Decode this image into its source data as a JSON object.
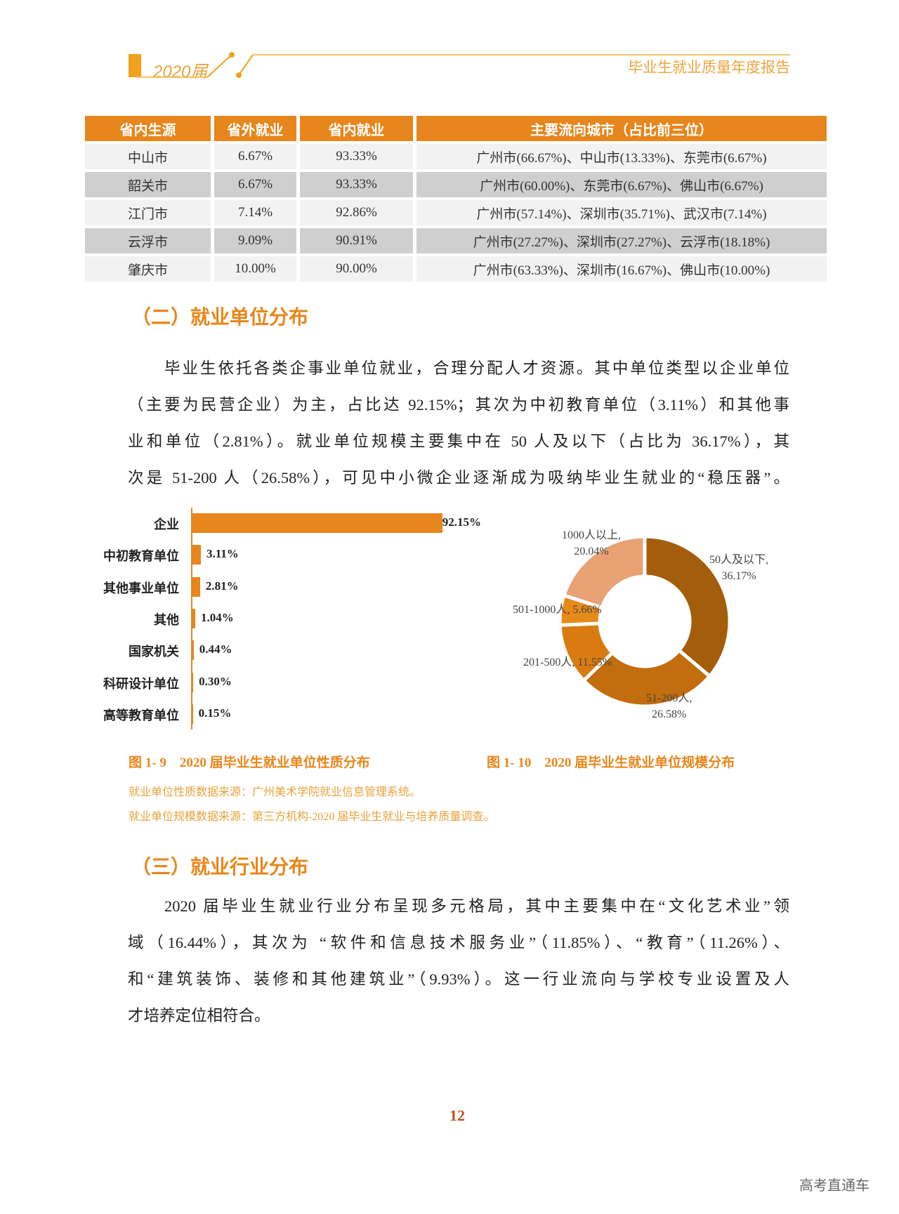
{
  "header": {
    "year": "2020届",
    "title": "毕业生就业质量年度报告",
    "accent": "#f0a21c"
  },
  "table": {
    "headers": [
      "省内生源",
      "省外就业",
      "省内就业",
      "主要流向城市（占比前三位）"
    ],
    "rows": [
      [
        "中山市",
        "6.67%",
        "93.33%",
        "广州市(66.67%)、中山市(13.33%)、东莞市(6.67%)"
      ],
      [
        "韶关市",
        "6.67%",
        "93.33%",
        "广州市(60.00%)、东莞市(6.67%)、佛山市(6.67%)"
      ],
      [
        "江门市",
        "7.14%",
        "92.86%",
        "广州市(57.14%)、深圳市(35.71%)、武汉市(7.14%)"
      ],
      [
        "云浮市",
        "9.09%",
        "90.91%",
        "广州市(27.27%)、深圳市(27.27%)、云浮市(18.18%)"
      ],
      [
        "肇庆市",
        "10.00%",
        "90.00%",
        "广州市(63.33%)、深圳市(16.67%)、佛山市(10.00%)"
      ]
    ]
  },
  "section2": {
    "heading": "（二）就业单位分布",
    "lines": [
      "毕业生依托各类企事业单位就业，合理分配人才资源。其中单位类型以企业单位",
      "（主要为民营企业）为主，占比达 92.15%；其次为中初教育单位（3.11%）和其他事",
      "业和单位（2.81%）。就业单位规模主要集中在 50 人及以下（占比为 36.17%），其",
      "次是 51-200 人（26.58%），可见中小微企业逐渐成为吸纳毕业生就业的“稳压器”。"
    ]
  },
  "chart_data": [
    {
      "type": "bar",
      "orientation": "horizontal",
      "color": "#e6861c",
      "categories": [
        "企业",
        "中初教育单位",
        "其他事业单位",
        "其他",
        "国家机关",
        "科研设计单位",
        "高等教育单位"
      ],
      "values": [
        92.15,
        3.11,
        2.81,
        1.04,
        0.44,
        0.3,
        0.15
      ],
      "labels": [
        "92.15%",
        "3.11%",
        "2.81%",
        "1.04%",
        "0.44%",
        "0.30%",
        "0.15%"
      ],
      "title": "图 1- 9　2020 届毕业生就业单位性质分布"
    },
    {
      "type": "pie",
      "donut": true,
      "categories": [
        "50人及以下",
        "51-200人",
        "201-500人",
        "501-1000人",
        "1000人以上"
      ],
      "values": [
        36.17,
        26.58,
        11.55,
        5.66,
        20.04
      ],
      "labels": [
        [
          "50人及以下,",
          "36.17%"
        ],
        [
          "51-200人,",
          "26.58%"
        ],
        [
          "201-500人, 11.55%"
        ],
        [
          "501-1000人, 5.66%"
        ],
        [
          "1000人以上,",
          "20.04%"
        ]
      ],
      "colors": [
        "#a35d0b",
        "#c26d0e",
        "#d97b11",
        "#e68a1a",
        "#e8a173"
      ],
      "title": "图 1- 10　2020 届毕业生就业单位规模分布"
    }
  ],
  "sources": [
    "就业单位性质数据来源：广州美术学院就业信息管理系统。",
    "就业单位规模数据来源：第三方机构-2020 届毕业生就业与培养质量调查。"
  ],
  "section3": {
    "heading": "（三）就业行业分布",
    "lines": [
      "2020 届毕业生就业行业分布呈现多元格局，其中主要集中在“文化艺术业”领",
      "域（16.44%），其次为 “软件和信息技术服务业”（11.85%）、“教育”（11.26%）、",
      "和“建筑装饰、装修和其他建筑业”（9.93%）。这一行业流向与学校专业设置及人",
      "才培养定位相符合。"
    ]
  },
  "page_number": "12",
  "watermark": "高考直通车"
}
